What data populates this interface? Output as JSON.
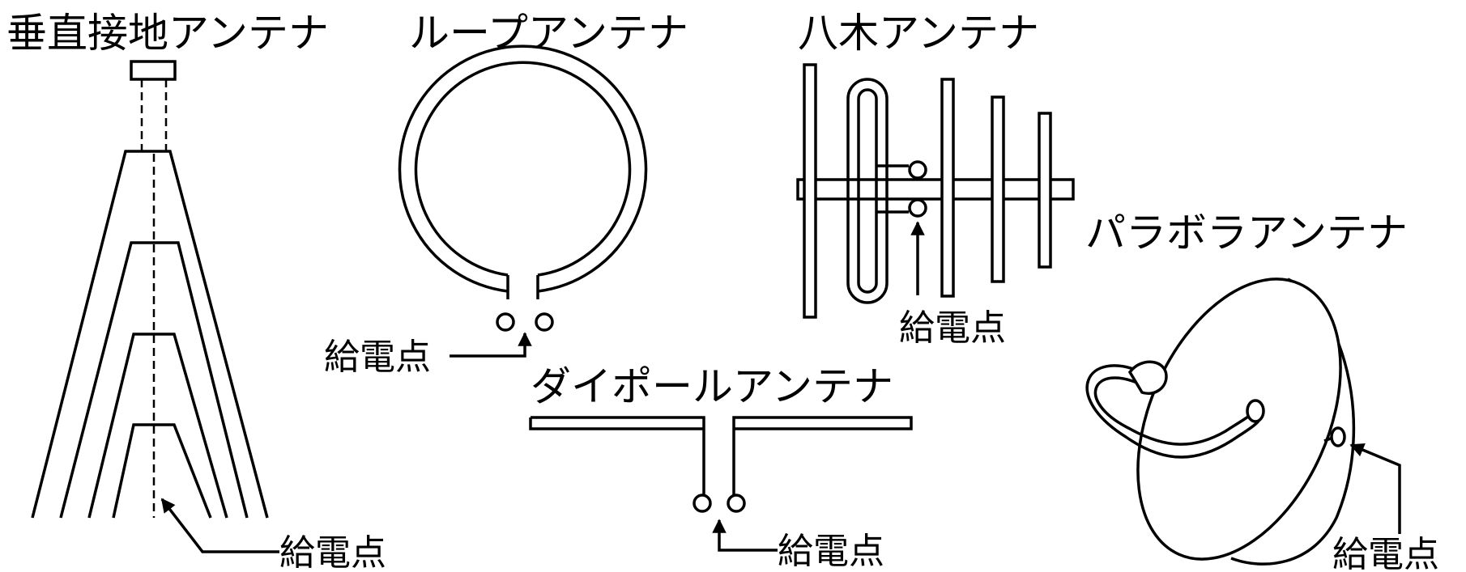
{
  "diagram": {
    "titles": {
      "vertical": "垂直接地アンテナ",
      "loop": "ループアンテナ",
      "yagi": "八木アンテナ",
      "dipole": "ダイポールアンテナ",
      "parabola": "パラボラアンテナ"
    },
    "feed_label": "給電点",
    "colors": {
      "line": "#000000",
      "background": "#ffffff"
    }
  }
}
